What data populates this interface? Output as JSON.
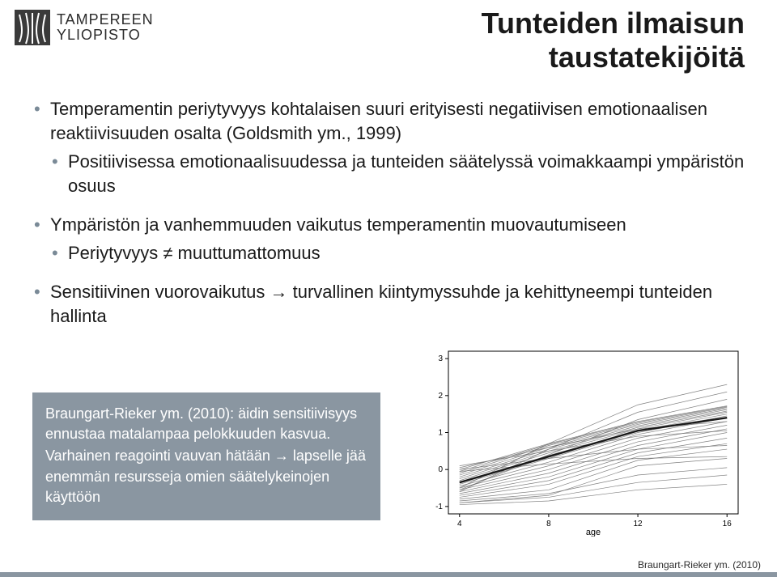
{
  "logo": {
    "line1": "TAMPEREEN",
    "line2": "YLIOPISTO",
    "line_fontsize": 18,
    "mark_color": "#3a3a3a",
    "mark_stroke": "#ffffff"
  },
  "title": {
    "line1": "Tunteiden ilmaisun",
    "line2": "taustatekijöitä",
    "fontsize": 36,
    "weight": "bold",
    "color": "#1a1a1a"
  },
  "bullets": {
    "fontsize": 22,
    "sub_fontsize": 22,
    "marker_color": "#7a8a97",
    "items": [
      {
        "text": "Temperamentin periytyvyys kohtalaisen suuri erityisesti negatiivisen emotionaalisen reaktiivisuuden osalta (Goldsmith ym., 1999)",
        "sub": [
          {
            "text": "Positiivisessa emotionaalisuudessa ja tunteiden säätelyssä voimakkaampi ympäristön osuus"
          }
        ]
      },
      {
        "text": "Ympäristön ja vanhemmuuden vaikutus temperamentin muovautumiseen",
        "sub": [
          {
            "text": "Periytyvyys ≠ muuttumattomuus"
          }
        ]
      },
      {
        "text_pre": "Sensitiivinen vuorovaikutus ",
        "arrow": "→",
        "text_post": " turvallinen kiintymyssuhde ja kehittyneempi tunteiden hallinta"
      }
    ]
  },
  "callout": {
    "background": "#8a96a1",
    "text_color": "#ffffff",
    "fontsize": 18,
    "line1_pre": "Braungart-Rieker ym. (2010): äidin sensitiivisyys ennustaa matalampaa pelokkuuden kasvua.",
    "line2_pre": "Varhainen reagointi vauvan hätään ",
    "arrow": "→",
    "line2_post": " lapselle jää enemmän resursseja omien säätelykeinojen käyttöön"
  },
  "chart": {
    "type": "line",
    "xlabel": "age",
    "xlim": [
      3.5,
      16.5
    ],
    "xticks": [
      4,
      8,
      12,
      16
    ],
    "ylim": [
      -1.2,
      3.2
    ],
    "yticks": [
      -1,
      0,
      1,
      2,
      3
    ],
    "label_fontsize": 11,
    "tick_fontsize": 10,
    "axis_color": "#000000",
    "background_color": "#ffffff",
    "line_color": "#6b6b6b",
    "line_width": 0.7,
    "thick_color": "#1a1a1a",
    "thick_width": 2.4,
    "series": [
      {
        "x": [
          4,
          8,
          12,
          16
        ],
        "y": [
          -0.9,
          -0.7,
          0.1,
          0.3
        ]
      },
      {
        "x": [
          4,
          8,
          12,
          16
        ],
        "y": [
          -0.8,
          -0.55,
          0.25,
          0.55
        ]
      },
      {
        "x": [
          4,
          8,
          12,
          16
        ],
        "y": [
          -0.75,
          -0.4,
          0.35,
          0.7
        ]
      },
      {
        "x": [
          4,
          8,
          12,
          16
        ],
        "y": [
          -0.7,
          -0.3,
          0.45,
          0.85
        ]
      },
      {
        "x": [
          4,
          8,
          12,
          16
        ],
        "y": [
          -0.65,
          -0.2,
          0.55,
          1.0
        ]
      },
      {
        "x": [
          4,
          8,
          12,
          16
        ],
        "y": [
          -0.6,
          -0.1,
          0.65,
          1.1
        ]
      },
      {
        "x": [
          4,
          8,
          12,
          16
        ],
        "y": [
          -0.55,
          0.0,
          0.75,
          1.2
        ]
      },
      {
        "x": [
          4,
          8,
          12,
          16
        ],
        "y": [
          -0.5,
          0.1,
          0.85,
          1.3
        ]
      },
      {
        "x": [
          4,
          8,
          12,
          16
        ],
        "y": [
          -0.45,
          0.2,
          0.95,
          1.4
        ]
      },
      {
        "x": [
          4,
          8,
          12,
          16
        ],
        "y": [
          -0.4,
          0.3,
          1.0,
          1.45
        ]
      },
      {
        "x": [
          4,
          8,
          12,
          16
        ],
        "y": [
          -0.35,
          0.38,
          1.05,
          1.5
        ]
      },
      {
        "x": [
          4,
          8,
          12,
          16
        ],
        "y": [
          -0.3,
          0.45,
          1.1,
          1.55
        ]
      },
      {
        "x": [
          4,
          8,
          12,
          16
        ],
        "y": [
          -0.25,
          0.5,
          1.14,
          1.58
        ]
      },
      {
        "x": [
          4,
          8,
          12,
          16
        ],
        "y": [
          -0.2,
          0.55,
          1.18,
          1.62
        ]
      },
      {
        "x": [
          4,
          8,
          12,
          16
        ],
        "y": [
          -0.15,
          0.6,
          1.22,
          1.65
        ]
      },
      {
        "x": [
          4,
          8,
          12,
          16
        ],
        "y": [
          -0.1,
          0.65,
          1.25,
          1.68
        ]
      },
      {
        "x": [
          4,
          8,
          12,
          16
        ],
        "y": [
          -0.05,
          0.68,
          1.28,
          1.7
        ]
      },
      {
        "x": [
          4,
          8,
          12,
          16
        ],
        "y": [
          0.0,
          0.7,
          1.3,
          1.72
        ]
      },
      {
        "x": [
          4,
          8,
          12,
          16
        ],
        "y": [
          0.05,
          0.6,
          1.1,
          1.3
        ]
      },
      {
        "x": [
          4,
          8,
          12,
          16
        ],
        "y": [
          0.1,
          0.5,
          0.9,
          1.05
        ]
      },
      {
        "x": [
          4,
          8,
          12,
          16
        ],
        "y": [
          0.0,
          0.3,
          0.55,
          0.65
        ]
      },
      {
        "x": [
          4,
          8,
          12,
          16
        ],
        "y": [
          -0.55,
          0.4,
          1.35,
          1.9
        ]
      },
      {
        "x": [
          4,
          8,
          12,
          16
        ],
        "y": [
          -0.6,
          0.55,
          1.55,
          2.1
        ]
      },
      {
        "x": [
          4,
          8,
          12,
          16
        ],
        "y": [
          -0.5,
          0.7,
          1.75,
          2.3
        ]
      },
      {
        "x": [
          4,
          8,
          12,
          16
        ],
        "y": [
          -0.05,
          0.15,
          0.3,
          0.35
        ]
      },
      {
        "x": [
          4,
          8,
          12,
          16
        ],
        "y": [
          -0.95,
          -0.85,
          -0.55,
          -0.4
        ]
      },
      {
        "x": [
          4,
          8,
          12,
          16
        ],
        "y": [
          -0.9,
          -0.75,
          -0.35,
          -0.15
        ]
      },
      {
        "x": [
          4,
          8,
          12,
          16
        ],
        "y": [
          -0.85,
          -0.65,
          -0.15,
          0.05
        ]
      }
    ],
    "thick_series": {
      "x": [
        4,
        8,
        12,
        16
      ],
      "y": [
        -0.35,
        0.35,
        1.05,
        1.4
      ]
    }
  },
  "citation": {
    "text": "Braungart-Rieker ym. (2010)",
    "fontsize": 12
  },
  "footer_bar_color": "#8a96a1"
}
